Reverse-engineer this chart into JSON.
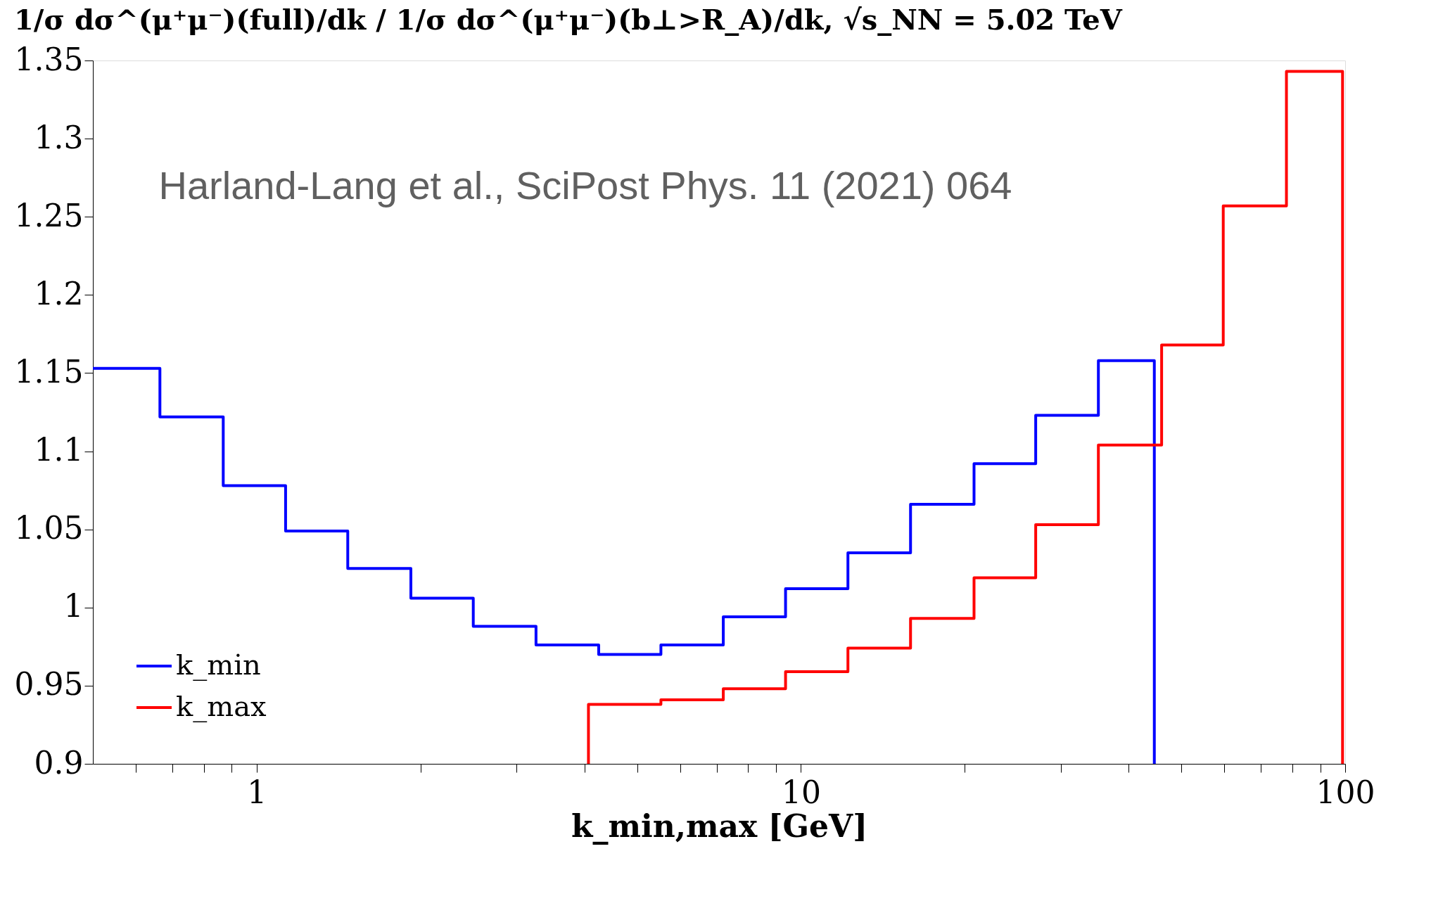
{
  "chart_data": {
    "type": "step",
    "title": "1/σ dσ^(μ⁺μ⁻)(full)/dk / 1/σ dσ^(μ⁺μ⁻)(b⊥>R_A)/dk, √s_NN = 5.02 TeV",
    "xlabel": "k_min,max [GeV]",
    "annotations": [
      "Harland-Lang et al., SciPost Phys. 11 (2021) 064"
    ],
    "log": "x",
    "grid": false,
    "legend": "bottom left",
    "marker": "none",
    "line_style": "solid",
    "xlim": [
      0.5,
      100
    ],
    "xticks": [
      {
        "value": 0.6,
        "label": null
      },
      {
        "value": 0.7,
        "label": null
      },
      {
        "value": 0.8,
        "label": null
      },
      {
        "value": 0.9,
        "label": null
      },
      1,
      {
        "value": 2,
        "label": null
      },
      {
        "value": 3,
        "label": null
      },
      {
        "value": 4,
        "label": null
      },
      {
        "value": 5,
        "label": null
      },
      {
        "value": 6,
        "label": null
      },
      {
        "value": 7,
        "label": null
      },
      {
        "value": 8,
        "label": null
      },
      {
        "value": 9,
        "label": null
      },
      10,
      {
        "value": 20,
        "label": null
      },
      {
        "value": 30,
        "label": null
      },
      {
        "value": 40,
        "label": null
      },
      {
        "value": 50,
        "label": null
      },
      {
        "value": 60,
        "label": null
      },
      {
        "value": 70,
        "label": null
      },
      {
        "value": 80,
        "label": null
      },
      {
        "value": 90,
        "label": null
      },
      100
    ],
    "ylim": [
      0.9,
      1.35
    ],
    "yticks": [
      0.9,
      0.95,
      1,
      1.05,
      1.1,
      1.15,
      1.2,
      1.25,
      1.3,
      1.35
    ],
    "series": [
      {
        "name": "k_min",
        "color": "#0000ff",
        "x": [
          0.5,
          0.664,
          0.868,
          1.13,
          1.47,
          1.92,
          2.5,
          3.26,
          4.25,
          5.53,
          7.2,
          9.37,
          12.2,
          15.9,
          20.8,
          27,
          35.2,
          44.6,
          44.6
        ],
        "values": [
          1.153,
          1.122,
          1.078,
          1.049,
          1.025,
          1.006,
          0.988,
          0.976,
          0.97,
          0.976,
          0.994,
          1.012,
          1.035,
          1.066,
          1.092,
          1.123,
          1.158,
          1.158,
          0.9
        ]
      },
      {
        "name": "k_max",
        "color": "#ff0000",
        "x": [
          4.07,
          4.07,
          5.53,
          7.2,
          9.37,
          12.2,
          15.9,
          20.8,
          27,
          35.2,
          46,
          59.7,
          78,
          98.9,
          98.9
        ],
        "values": [
          0.9,
          0.938,
          0.941,
          0.948,
          0.959,
          0.974,
          0.993,
          1.019,
          1.053,
          1.104,
          1.168,
          1.257,
          1.343,
          1.343,
          0.9
        ]
      }
    ]
  }
}
